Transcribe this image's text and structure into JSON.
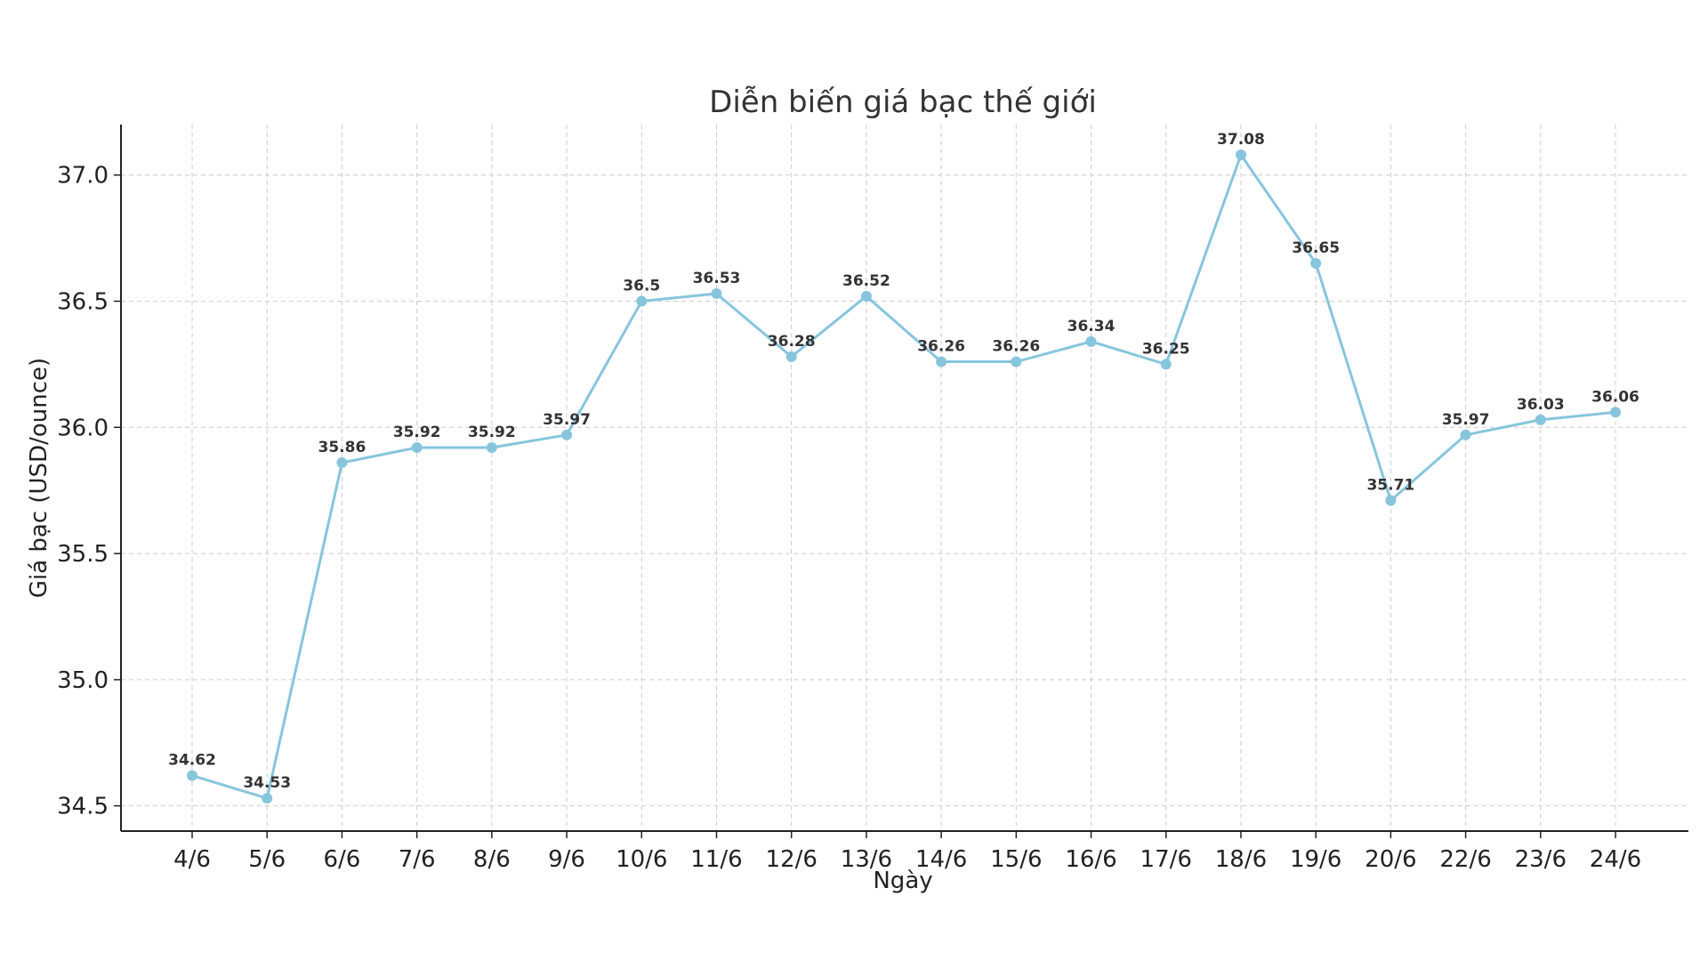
{
  "chart_data": {
    "type": "line",
    "title": "Diễn biến giá bạc thế giới",
    "xlabel": "Ngày",
    "ylabel": "Giá bạc (USD/ounce)",
    "categories": [
      "4/6",
      "5/6",
      "6/6",
      "7/6",
      "8/6",
      "9/6",
      "10/6",
      "11/6",
      "12/6",
      "13/6",
      "14/6",
      "15/6",
      "16/6",
      "17/6",
      "18/6",
      "19/6",
      "20/6",
      "22/6",
      "23/6",
      "24/6"
    ],
    "series": [
      {
        "values": [
          34.62,
          34.53,
          35.86,
          35.92,
          35.92,
          35.97,
          36.5,
          36.53,
          36.28,
          36.52,
          36.26,
          36.26,
          36.34,
          36.25,
          37.08,
          36.65,
          35.71,
          35.97,
          36.03,
          36.06
        ],
        "labels": [
          "34.62",
          "34.53",
          "35.86",
          "35.92",
          "35.92",
          "35.97",
          "36.5",
          "36.53",
          "36.28",
          "36.52",
          "36.26",
          "36.26",
          "36.34",
          "36.25",
          "37.08",
          "36.65",
          "35.71",
          "35.97",
          "36.03",
          "36.06"
        ],
        "color": "#87c5dd",
        "marker": "circle"
      }
    ],
    "yticks": [
      "34.5",
      "35.0",
      "35.5",
      "36.0",
      "36.5",
      "37.0"
    ],
    "ylim": [
      34.4,
      37.2
    ],
    "grid": true,
    "legend": "none"
  }
}
